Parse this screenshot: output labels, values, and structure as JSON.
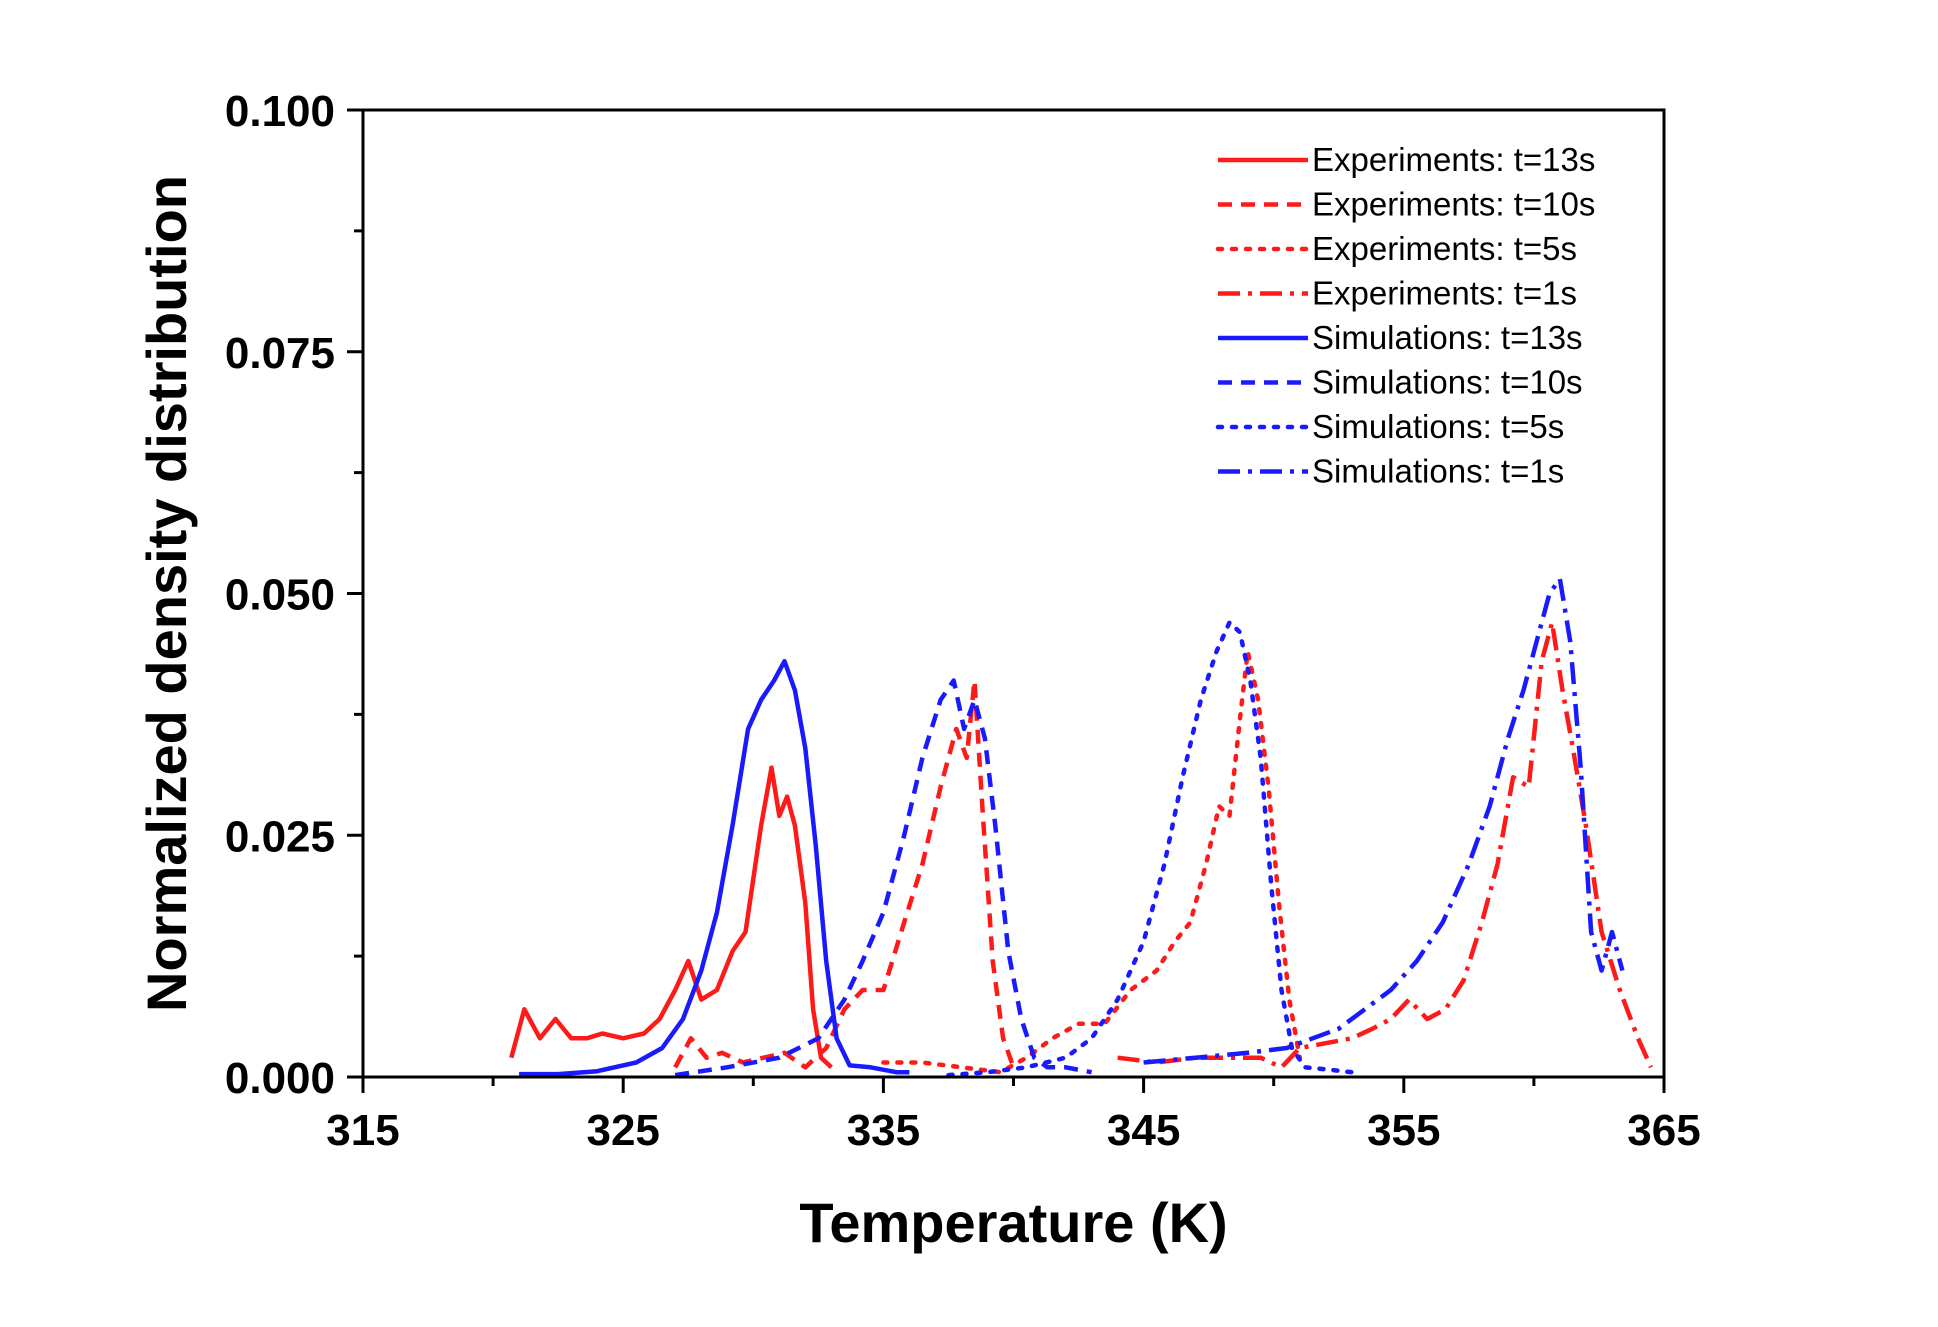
{
  "chart_data": {
    "type": "line",
    "title": "",
    "xlabel": "Temperature (K)",
    "ylabel": "Normalized density distribution",
    "xlim": [
      315,
      365
    ],
    "ylim": [
      0,
      0.1
    ],
    "x_ticks": [
      "315",
      "325",
      "335",
      "345",
      "355",
      "365"
    ],
    "y_ticks": [
      "0.000",
      "0.025",
      "0.050",
      "0.075",
      "0.100"
    ],
    "legend_position": "top-right",
    "grid": false,
    "colors": {
      "experiments": "#ff1a1a",
      "simulations": "#1a1aff"
    },
    "series": [
      {
        "name": "Experiments: t=13s",
        "group": "experiments",
        "dash": "solid",
        "x": [
          320.7,
          321.2,
          321.8,
          322.4,
          323.0,
          323.6,
          324.2,
          325.0,
          325.8,
          326.4,
          327.0,
          327.5,
          328.0,
          328.6,
          329.2,
          329.7,
          330.3,
          330.7,
          331.0,
          331.3,
          331.6,
          332.0,
          332.3,
          332.6,
          333.0
        ],
        "y": [
          0.002,
          0.007,
          0.004,
          0.006,
          0.004,
          0.004,
          0.0045,
          0.004,
          0.0045,
          0.006,
          0.009,
          0.012,
          0.008,
          0.009,
          0.013,
          0.015,
          0.026,
          0.032,
          0.027,
          0.029,
          0.026,
          0.018,
          0.007,
          0.002,
          0.001
        ]
      },
      {
        "name": "Experiments: t=10s",
        "group": "experiments",
        "dash": "dash",
        "x": [
          327.0,
          327.6,
          328.2,
          328.8,
          329.6,
          330.4,
          331.2,
          332.0,
          332.8,
          333.5,
          334.2,
          335.0,
          335.8,
          336.5,
          337.2,
          337.8,
          338.2,
          338.5,
          338.8,
          339.2,
          339.6,
          340.0
        ],
        "y": [
          0.001,
          0.004,
          0.002,
          0.0025,
          0.0015,
          0.002,
          0.0025,
          0.001,
          0.003,
          0.007,
          0.009,
          0.009,
          0.016,
          0.022,
          0.03,
          0.036,
          0.033,
          0.041,
          0.028,
          0.012,
          0.004,
          0.001
        ]
      },
      {
        "name": "Experiments: t=5s",
        "group": "experiments",
        "dash": "dot",
        "x": [
          335.0,
          336.5,
          338.0,
          339.5,
          340.5,
          341.5,
          342.5,
          343.5,
          344.5,
          345.5,
          346.2,
          346.8,
          347.4,
          347.9,
          348.3,
          348.7,
          349.0,
          349.4,
          349.8,
          350.2,
          350.6,
          351.0
        ],
        "y": [
          0.0015,
          0.0015,
          0.001,
          0.0005,
          0.002,
          0.004,
          0.0055,
          0.0055,
          0.009,
          0.011,
          0.014,
          0.016,
          0.022,
          0.028,
          0.027,
          0.037,
          0.044,
          0.039,
          0.03,
          0.018,
          0.008,
          0.002
        ]
      },
      {
        "name": "Experiments: t=1s",
        "group": "experiments",
        "dash": "dashdot",
        "x": [
          344.0,
          345.5,
          347.0,
          348.5,
          349.5,
          350.3,
          351.0,
          352.0,
          353.0,
          353.8,
          354.5,
          355.2,
          355.9,
          356.6,
          357.3,
          358.0,
          358.6,
          359.2,
          359.8,
          360.3,
          360.7,
          361.1,
          361.5,
          362.0,
          362.6,
          363.3,
          364.0,
          364.5
        ],
        "y": [
          0.002,
          0.0015,
          0.002,
          0.002,
          0.002,
          0.001,
          0.003,
          0.0035,
          0.004,
          0.005,
          0.006,
          0.008,
          0.006,
          0.007,
          0.01,
          0.016,
          0.022,
          0.031,
          0.03,
          0.043,
          0.047,
          0.04,
          0.034,
          0.026,
          0.015,
          0.009,
          0.004,
          0.001
        ]
      },
      {
        "name": "Simulations: t=13s",
        "group": "simulations",
        "dash": "solid",
        "x": [
          321.0,
          322.5,
          324.0,
          325.5,
          326.5,
          327.3,
          328.0,
          328.6,
          329.2,
          329.8,
          330.3,
          330.8,
          331.2,
          331.6,
          332.0,
          332.4,
          332.8,
          333.2,
          333.7,
          334.5,
          335.5,
          336.0
        ],
        "y": [
          0.0003,
          0.0003,
          0.0006,
          0.0015,
          0.003,
          0.006,
          0.011,
          0.017,
          0.026,
          0.036,
          0.039,
          0.041,
          0.043,
          0.04,
          0.034,
          0.024,
          0.012,
          0.004,
          0.0012,
          0.001,
          0.0005,
          0.0005
        ]
      },
      {
        "name": "Simulations: t=10s",
        "group": "simulations",
        "dash": "dash",
        "x": [
          327.0,
          329.0,
          331.0,
          332.5,
          333.5,
          334.2,
          335.0,
          335.8,
          336.5,
          337.2,
          337.7,
          338.1,
          338.5,
          338.9,
          339.3,
          339.8,
          340.3,
          340.8,
          341.3,
          342.0,
          343.0
        ],
        "y": [
          0.0002,
          0.001,
          0.002,
          0.004,
          0.008,
          0.012,
          0.017,
          0.025,
          0.033,
          0.039,
          0.041,
          0.036,
          0.039,
          0.035,
          0.026,
          0.013,
          0.006,
          0.002,
          0.001,
          0.001,
          0.0005
        ]
      },
      {
        "name": "Simulations: t=5s",
        "group": "simulations",
        "dash": "dot",
        "x": [
          337.5,
          339.0,
          340.5,
          342.0,
          343.0,
          344.0,
          345.0,
          345.8,
          346.5,
          347.2,
          347.8,
          348.3,
          348.7,
          349.1,
          349.5,
          349.9,
          350.3,
          350.7,
          351.2,
          352.0,
          353.0
        ],
        "y": [
          0.0002,
          0.0005,
          0.001,
          0.002,
          0.004,
          0.008,
          0.014,
          0.022,
          0.031,
          0.039,
          0.044,
          0.047,
          0.046,
          0.041,
          0.033,
          0.02,
          0.009,
          0.003,
          0.001,
          0.0008,
          0.0005
        ]
      },
      {
        "name": "Simulations: t=1s",
        "group": "simulations",
        "dash": "dashdot",
        "x": [
          345.0,
          347.0,
          349.0,
          350.5,
          351.5,
          352.5,
          353.5,
          354.5,
          355.5,
          356.5,
          357.5,
          358.3,
          359.0,
          359.6,
          360.1,
          360.6,
          361.0,
          361.4,
          361.8,
          362.2,
          362.6,
          363.0,
          363.4
        ],
        "y": [
          0.0015,
          0.002,
          0.0025,
          0.003,
          0.004,
          0.005,
          0.007,
          0.009,
          0.012,
          0.016,
          0.022,
          0.028,
          0.035,
          0.04,
          0.045,
          0.05,
          0.0515,
          0.045,
          0.032,
          0.015,
          0.011,
          0.015,
          0.011
        ]
      }
    ]
  }
}
